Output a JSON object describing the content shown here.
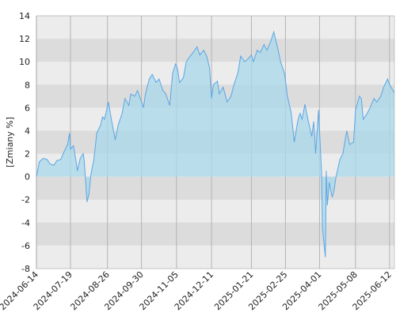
{
  "chart_data": {
    "type": "area",
    "ylabel": "[Zmiany %]",
    "x": [
      "2024-06-14",
      "2024-06-17",
      "2024-06-21",
      "2024-06-25",
      "2024-06-28",
      "2024-07-02",
      "2024-07-05",
      "2024-07-09",
      "2024-07-12",
      "2024-07-16",
      "2024-07-18",
      "2024-07-19",
      "2024-07-22",
      "2024-07-25",
      "2024-07-26",
      "2024-07-29",
      "2024-08-01",
      "2024-08-02",
      "2024-08-05",
      "2024-08-07",
      "2024-08-09",
      "2024-08-12",
      "2024-08-15",
      "2024-08-19",
      "2024-08-21",
      "2024-08-23",
      "2024-08-27",
      "2024-08-30",
      "2024-09-03",
      "2024-09-06",
      "2024-09-10",
      "2024-09-13",
      "2024-09-17",
      "2024-09-19",
      "2024-09-23",
      "2024-09-26",
      "2024-09-30",
      "2024-10-02",
      "2024-10-04",
      "2024-10-08",
      "2024-10-11",
      "2024-10-15",
      "2024-10-18",
      "2024-10-22",
      "2024-10-25",
      "2024-10-29",
      "2024-11-01",
      "2024-11-04",
      "2024-11-06",
      "2024-11-08",
      "2024-11-12",
      "2024-11-15",
      "2024-11-19",
      "2024-11-22",
      "2024-11-26",
      "2024-11-29",
      "2024-12-03",
      "2024-12-06",
      "2024-12-09",
      "2024-12-11",
      "2024-12-13",
      "2024-12-17",
      "2024-12-19",
      "2024-12-23",
      "2024-12-27",
      "2024-12-31",
      "2025-01-03",
      "2025-01-07",
      "2025-01-10",
      "2025-01-14",
      "2025-01-17",
      "2025-01-21",
      "2025-01-23",
      "2025-01-27",
      "2025-01-30",
      "2025-02-03",
      "2025-02-06",
      "2025-02-10",
      "2025-02-13",
      "2025-02-17",
      "2025-02-20",
      "2025-02-24",
      "2025-02-27",
      "2025-03-03",
      "2025-03-06",
      "2025-03-10",
      "2025-03-12",
      "2025-03-14",
      "2025-03-17",
      "2025-03-20",
      "2025-03-24",
      "2025-03-26",
      "2025-03-28",
      "2025-03-31",
      "2025-04-03",
      "2025-04-04",
      "2025-04-07",
      "2025-04-08",
      "2025-04-09",
      "2025-04-11",
      "2025-04-14",
      "2025-04-16",
      "2025-04-18",
      "2025-04-22",
      "2025-04-25",
      "2025-04-29",
      "2025-05-02",
      "2025-05-06",
      "2025-05-08",
      "2025-05-12",
      "2025-05-14",
      "2025-05-16",
      "2025-05-20",
      "2025-05-23",
      "2025-05-27",
      "2025-05-30",
      "2025-06-03",
      "2025-06-06",
      "2025-06-10",
      "2025-06-12",
      "2025-06-17"
    ],
    "series": [
      {
        "color": "#5aa6e6",
        "fill": "#a8d8ea",
        "values": [
          0,
          1.3,
          1.6,
          1.5,
          1.1,
          1.0,
          1.4,
          1.5,
          2.1,
          2.8,
          3.8,
          2.4,
          2.7,
          1.2,
          0.5,
          1.6,
          2.0,
          1.5,
          -2.2,
          -1.5,
          0.2,
          1.5,
          3.8,
          4.5,
          5.2,
          5.0,
          6.5,
          5.0,
          3.2,
          4.5,
          5.5,
          6.8,
          6.2,
          7.2,
          7.0,
          7.5,
          6.5,
          6.0,
          7.2,
          8.5,
          8.9,
          8.2,
          8.5,
          7.5,
          7.2,
          6.2,
          9.0,
          9.8,
          9.4,
          8.2,
          8.6,
          10.0,
          10.5,
          10.8,
          11.3,
          10.6,
          11.0,
          10.5,
          9.5,
          6.8,
          8.0,
          8.3,
          7.2,
          7.8,
          6.5,
          7.0,
          8.0,
          9.0,
          10.5,
          10.0,
          10.2,
          10.6,
          10.0,
          11.0,
          10.8,
          11.5,
          11.0,
          11.8,
          12.6,
          11.2,
          10.0,
          9.0,
          7.0,
          5.5,
          3.0,
          5.0,
          5.5,
          5.0,
          6.3,
          5.0,
          3.5,
          4.8,
          2.0,
          5.8,
          0.5,
          -4.5,
          -7.0,
          0.5,
          -2.5,
          -0.5,
          -1.8,
          -1.2,
          0,
          1.5,
          2.0,
          4.0,
          2.8,
          3.0,
          5.8,
          7.0,
          6.8,
          5.0,
          5.5,
          6.0,
          6.8,
          6.5,
          7.0,
          7.8,
          8.5,
          8.0,
          7.3
        ]
      }
    ],
    "xlim": [
      "2024-06-14",
      "2025-06-17"
    ],
    "xticks": [
      "2024-06-14",
      "2024-07-19",
      "2024-08-26",
      "2024-09-30",
      "2024-11-05",
      "2024-12-11",
      "2025-01-21",
      "2025-02-25",
      "2025-04-01",
      "2025-05-08",
      "2025-06-12"
    ],
    "ylim": [
      -8,
      14
    ],
    "yticks": [
      -8,
      -6,
      -4,
      -2,
      0,
      2,
      4,
      6,
      8,
      10,
      12,
      14
    ],
    "grid": true
  }
}
